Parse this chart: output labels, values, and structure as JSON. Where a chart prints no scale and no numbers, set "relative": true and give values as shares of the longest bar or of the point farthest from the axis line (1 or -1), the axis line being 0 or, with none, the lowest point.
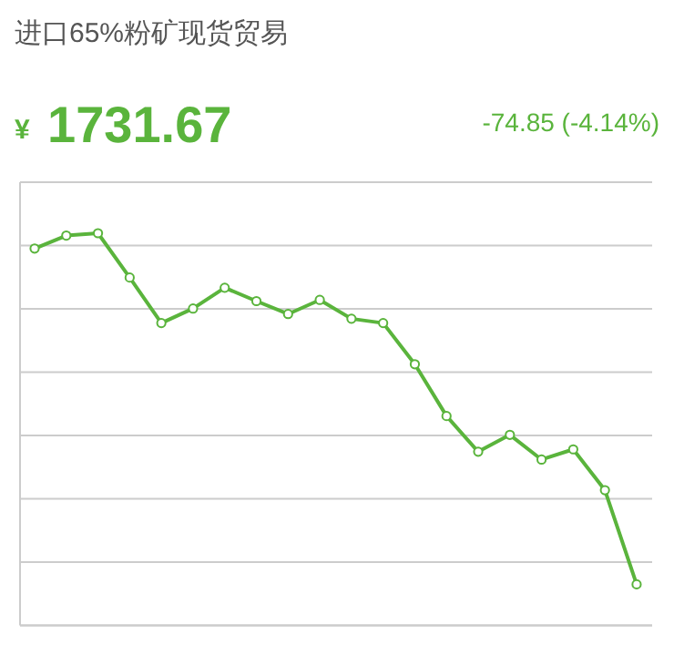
{
  "chart_data": {
    "type": "line",
    "title": "进口65%粉矿现货贸易",
    "annotations": [
      "¥",
      "1731.67",
      "-74.85 (-4.14%)"
    ],
    "relative": true,
    "categories": [
      null,
      null,
      null,
      null,
      null,
      null,
      null,
      null,
      null,
      null,
      null,
      null,
      null,
      null,
      null,
      null,
      null,
      null,
      null,
      null
    ],
    "series": [
      {
        "color": "#5ab43c",
        "values": [
          0.961,
          0.994,
          1,
          0.887,
          0.771,
          0.808,
          0.861,
          0.827,
          0.794,
          0.83,
          0.782,
          0.771,
          0.666,
          0.534,
          0.443,
          0.486,
          0.423,
          0.449,
          0.345,
          0.105
        ]
      }
    ],
    "marker": "circle",
    "line_style": "solid",
    "grid": "y"
  }
}
